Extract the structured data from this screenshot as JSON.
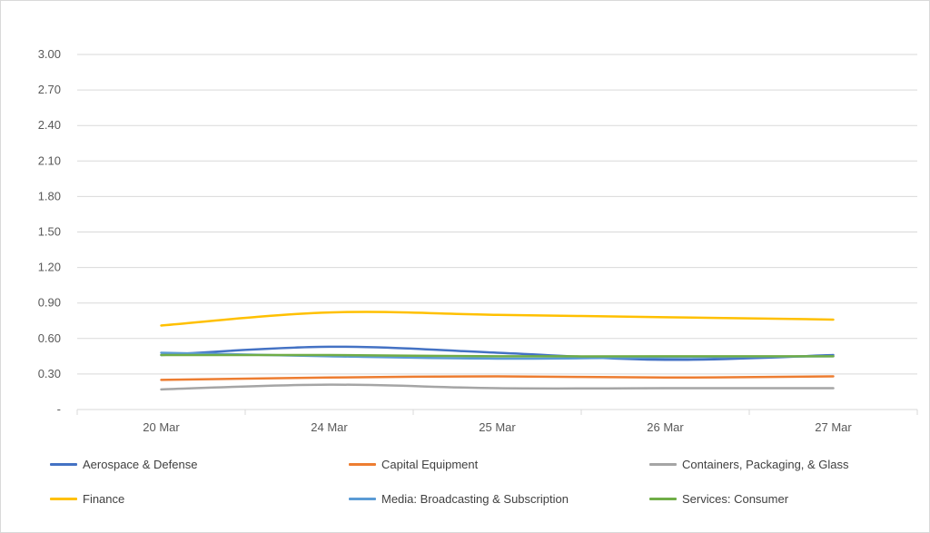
{
  "chart_data": {
    "type": "line",
    "title": "",
    "xlabel": "",
    "ylabel": "",
    "categories": [
      "20 Mar",
      "24 Mar",
      "25 Mar",
      "26 Mar",
      "27 Mar"
    ],
    "ylim": [
      0,
      3.0
    ],
    "y_ticks": [
      "-",
      "0.30",
      "0.60",
      "0.90",
      "1.20",
      "1.50",
      "1.80",
      "2.10",
      "2.40",
      "2.70",
      "3.00"
    ],
    "grid": true,
    "smooth": true,
    "legend_position": "bottom",
    "series": [
      {
        "name": "Aerospace & Defense",
        "color": "#4472C4",
        "values": [
          0.46,
          0.53,
          0.48,
          0.42,
          0.46
        ]
      },
      {
        "name": "Capital Equipment",
        "color": "#ED7D31",
        "values": [
          0.25,
          0.27,
          0.28,
          0.27,
          0.28
        ]
      },
      {
        "name": "Containers, Packaging, & Glass",
        "color": "#A5A5A5",
        "values": [
          0.17,
          0.21,
          0.18,
          0.18,
          0.18
        ]
      },
      {
        "name": "Finance",
        "color": "#FFC000",
        "values": [
          0.71,
          0.82,
          0.8,
          0.78,
          0.76
        ]
      },
      {
        "name": "Media: Broadcasting & Subscription",
        "color": "#5B9BD5",
        "values": [
          0.48,
          0.45,
          0.43,
          0.44,
          0.45
        ]
      },
      {
        "name": "Services: Consumer",
        "color": "#70AD47",
        "values": [
          0.46,
          0.46,
          0.45,
          0.45,
          0.45
        ]
      }
    ]
  }
}
